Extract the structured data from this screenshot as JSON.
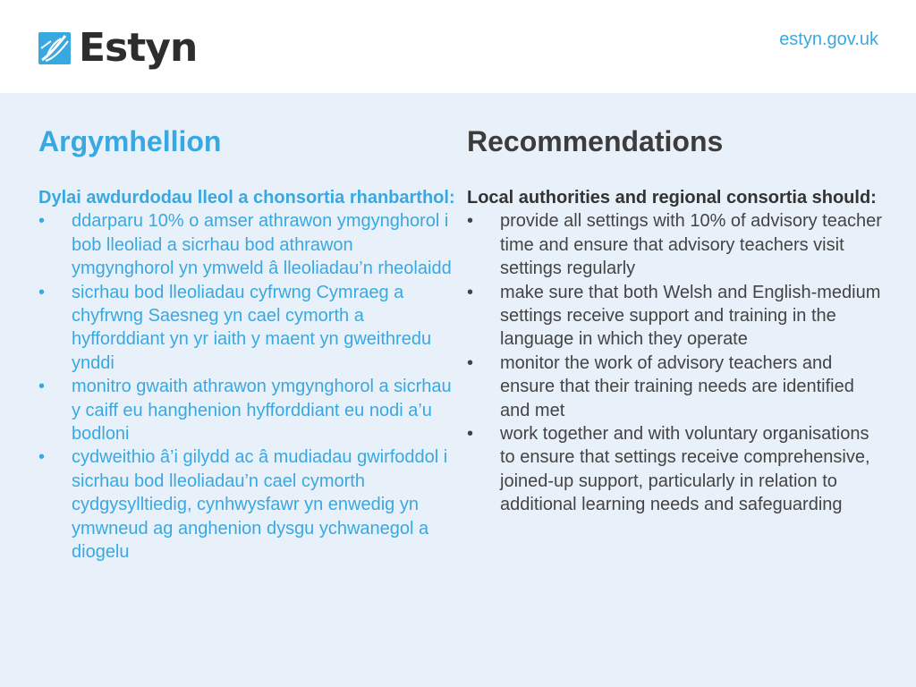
{
  "header": {
    "logo_text": "Estyn",
    "site_link": "estyn.gov.uk",
    "logo_icon": "estyn-leaf-icon",
    "brand_color": "#3aa8e0"
  },
  "welsh": {
    "title": "Argymhellion",
    "intro": "Dylai awdurdodau lleol a chonsortia rhanbarthol:",
    "bullets": [
      "ddarparu 10% o amser athrawon ymgynghorol i bob lleoliad a sicrhau bod athrawon ymgynghorol yn ymweld â lleoliadau’n rheolaidd",
      "sicrhau bod lleoliadau cyfrwng Cymraeg a chyfrwng Saesneg yn cael cymorth a hyfforddiant yn yr iaith y maent yn gweithredu ynddi",
      "monitro gwaith athrawon ymgynghorol a sicrhau y caiff eu hanghenion hyfforddiant eu nodi a’u bodloni",
      "cydweithio â’i gilydd ac â mudiadau gwirfoddol i sicrhau bod lleoliadau’n cael cymorth cydgysylltiedig, cynhwysfawr yn enwedig yn ymwneud ag anghenion dysgu ychwanegol a diogelu"
    ]
  },
  "english": {
    "title": "Recommendations",
    "intro": "Local authorities and regional consortia should:",
    "bullets": [
      "provide all settings with 10% of advisory teacher time and ensure that advisory teachers visit settings regularly",
      " make sure that both Welsh and English-medium settings receive support and training in the language in which they operate",
      " monitor the work of advisory teachers and ensure that their training needs are identified and met",
      " work together and with voluntary organisations to ensure that settings receive comprehensive, joined-up support, particularly in relation to additional learning needs and safeguarding"
    ]
  },
  "bullet_char": "•"
}
